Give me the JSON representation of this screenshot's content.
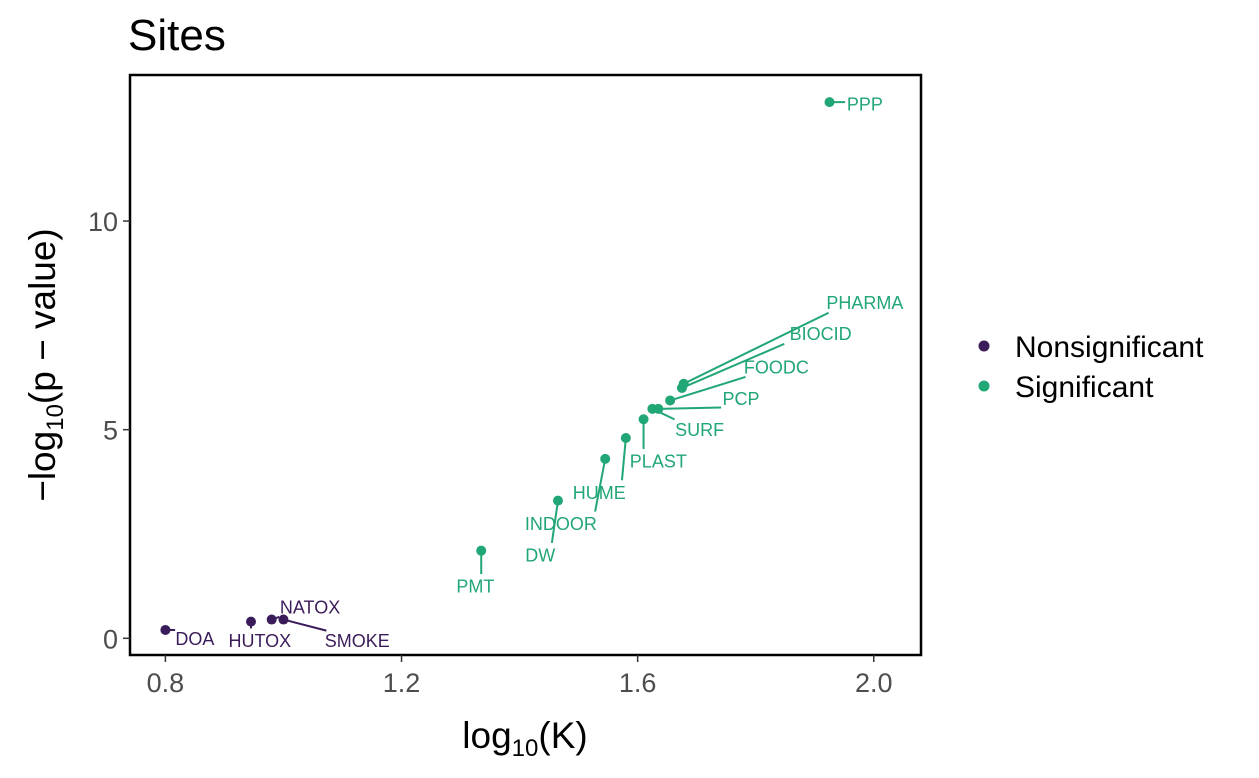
{
  "chart_data": {
    "type": "scatter",
    "title": "Sites",
    "xlabel": {
      "prefix": "log",
      "sub": "10",
      "arg": "K"
    },
    "ylabel": {
      "prefix": "−log",
      "sub": "10",
      "arg": "p − value"
    },
    "xlim": [
      0.74,
      2.08
    ],
    "ylim": [
      -0.4,
      13.5
    ],
    "xticks": [
      0.8,
      1.2,
      1.6,
      2.0
    ],
    "xtick_labels": [
      "0.8",
      "1.2",
      "1.6",
      "2.0"
    ],
    "yticks": [
      0,
      5,
      10
    ],
    "ytick_labels": [
      "0",
      "5",
      "10"
    ],
    "legend": {
      "position": "right",
      "entries": [
        {
          "name": "Nonsignificant",
          "color": "#3b1c5a"
        },
        {
          "name": "Significant",
          "color": "#21a675"
        }
      ]
    },
    "points": [
      {
        "label": "DOA",
        "x": 0.8,
        "y": 0.2,
        "group": "Nonsignificant",
        "lx": 0.85,
        "ly": 0.0
      },
      {
        "label": "HUTOX",
        "x": 0.945,
        "y": 0.4,
        "group": "Nonsignificant",
        "lx": 0.96,
        "ly": -0.05
      },
      {
        "label": "NATOX",
        "x": 0.98,
        "y": 0.45,
        "group": "Nonsignificant",
        "lx": 1.045,
        "ly": 0.75
      },
      {
        "label": "SMOKE",
        "x": 1.0,
        "y": 0.45,
        "group": "Nonsignificant",
        "lx": 1.125,
        "ly": -0.05
      },
      {
        "label": "PMT",
        "x": 1.335,
        "y": 2.1,
        "group": "Significant",
        "lx": 1.325,
        "ly": 1.25
      },
      {
        "label": "DW",
        "x": 1.465,
        "y": 3.3,
        "group": "Significant",
        "lx": 1.435,
        "ly": 2.0
      },
      {
        "label": "INDOOR",
        "x": 1.545,
        "y": 4.3,
        "group": "Significant",
        "lx": 1.47,
        "ly": 2.75
      },
      {
        "label": "HUME",
        "x": 1.58,
        "y": 4.8,
        "group": "Significant",
        "lx": 1.535,
        "ly": 3.5
      },
      {
        "label": "PLAST",
        "x": 1.61,
        "y": 5.25,
        "group": "Significant",
        "lx": 1.635,
        "ly": 4.25
      },
      {
        "label": "SURF",
        "x": 1.625,
        "y": 5.5,
        "group": "Significant",
        "lx": 1.705,
        "ly": 5.0
      },
      {
        "label": "PCP",
        "x": 1.635,
        "y": 5.5,
        "group": "Significant",
        "lx": 1.775,
        "ly": 5.75
      },
      {
        "label": "FOODC",
        "x": 1.655,
        "y": 5.7,
        "group": "Significant",
        "lx": 1.835,
        "ly": 6.5
      },
      {
        "label": "BIOCID",
        "x": 1.675,
        "y": 6.0,
        "group": "Significant",
        "lx": 1.91,
        "ly": 7.3
      },
      {
        "label": "PHARMA",
        "x": 1.678,
        "y": 6.1,
        "group": "Significant",
        "lx": 1.985,
        "ly": 8.05
      },
      {
        "label": "PPP",
        "x": 1.925,
        "y": 12.85,
        "group": "Significant",
        "lx": 1.985,
        "ly": 12.8
      }
    ]
  }
}
